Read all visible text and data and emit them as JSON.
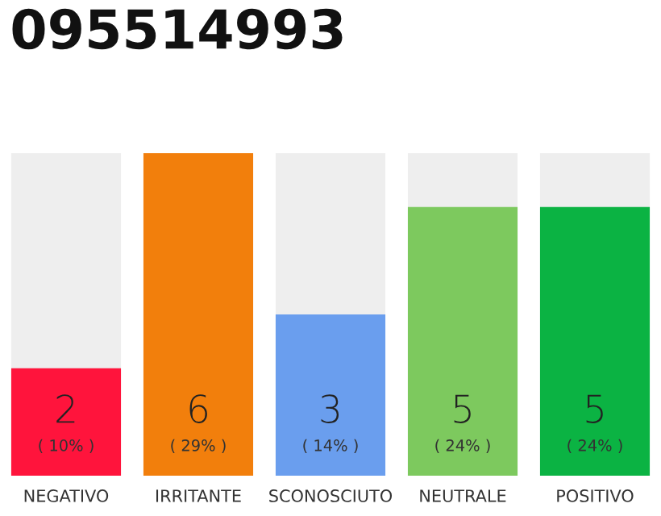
{
  "chart_data": {
    "type": "bar",
    "title": "095514993",
    "categories": [
      "NEGATIVO",
      "IRRITANTE",
      "SCONOSCIUTO",
      "NEUTRALE",
      "POSITIVO"
    ],
    "values": [
      2,
      6,
      3,
      5,
      5
    ],
    "colors": [
      "#ff143c",
      "#f27f0c",
      "#6a9eee",
      "#7dc95e",
      "#0bb343"
    ],
    "ylim": [
      0,
      6
    ],
    "tick_labels": "x",
    "data_labels": true,
    "grid": false,
    "annotations": [
      "( 10% )",
      "( 29% )",
      "( 14% )",
      "( 24% )",
      "( 24% )"
    ]
  }
}
